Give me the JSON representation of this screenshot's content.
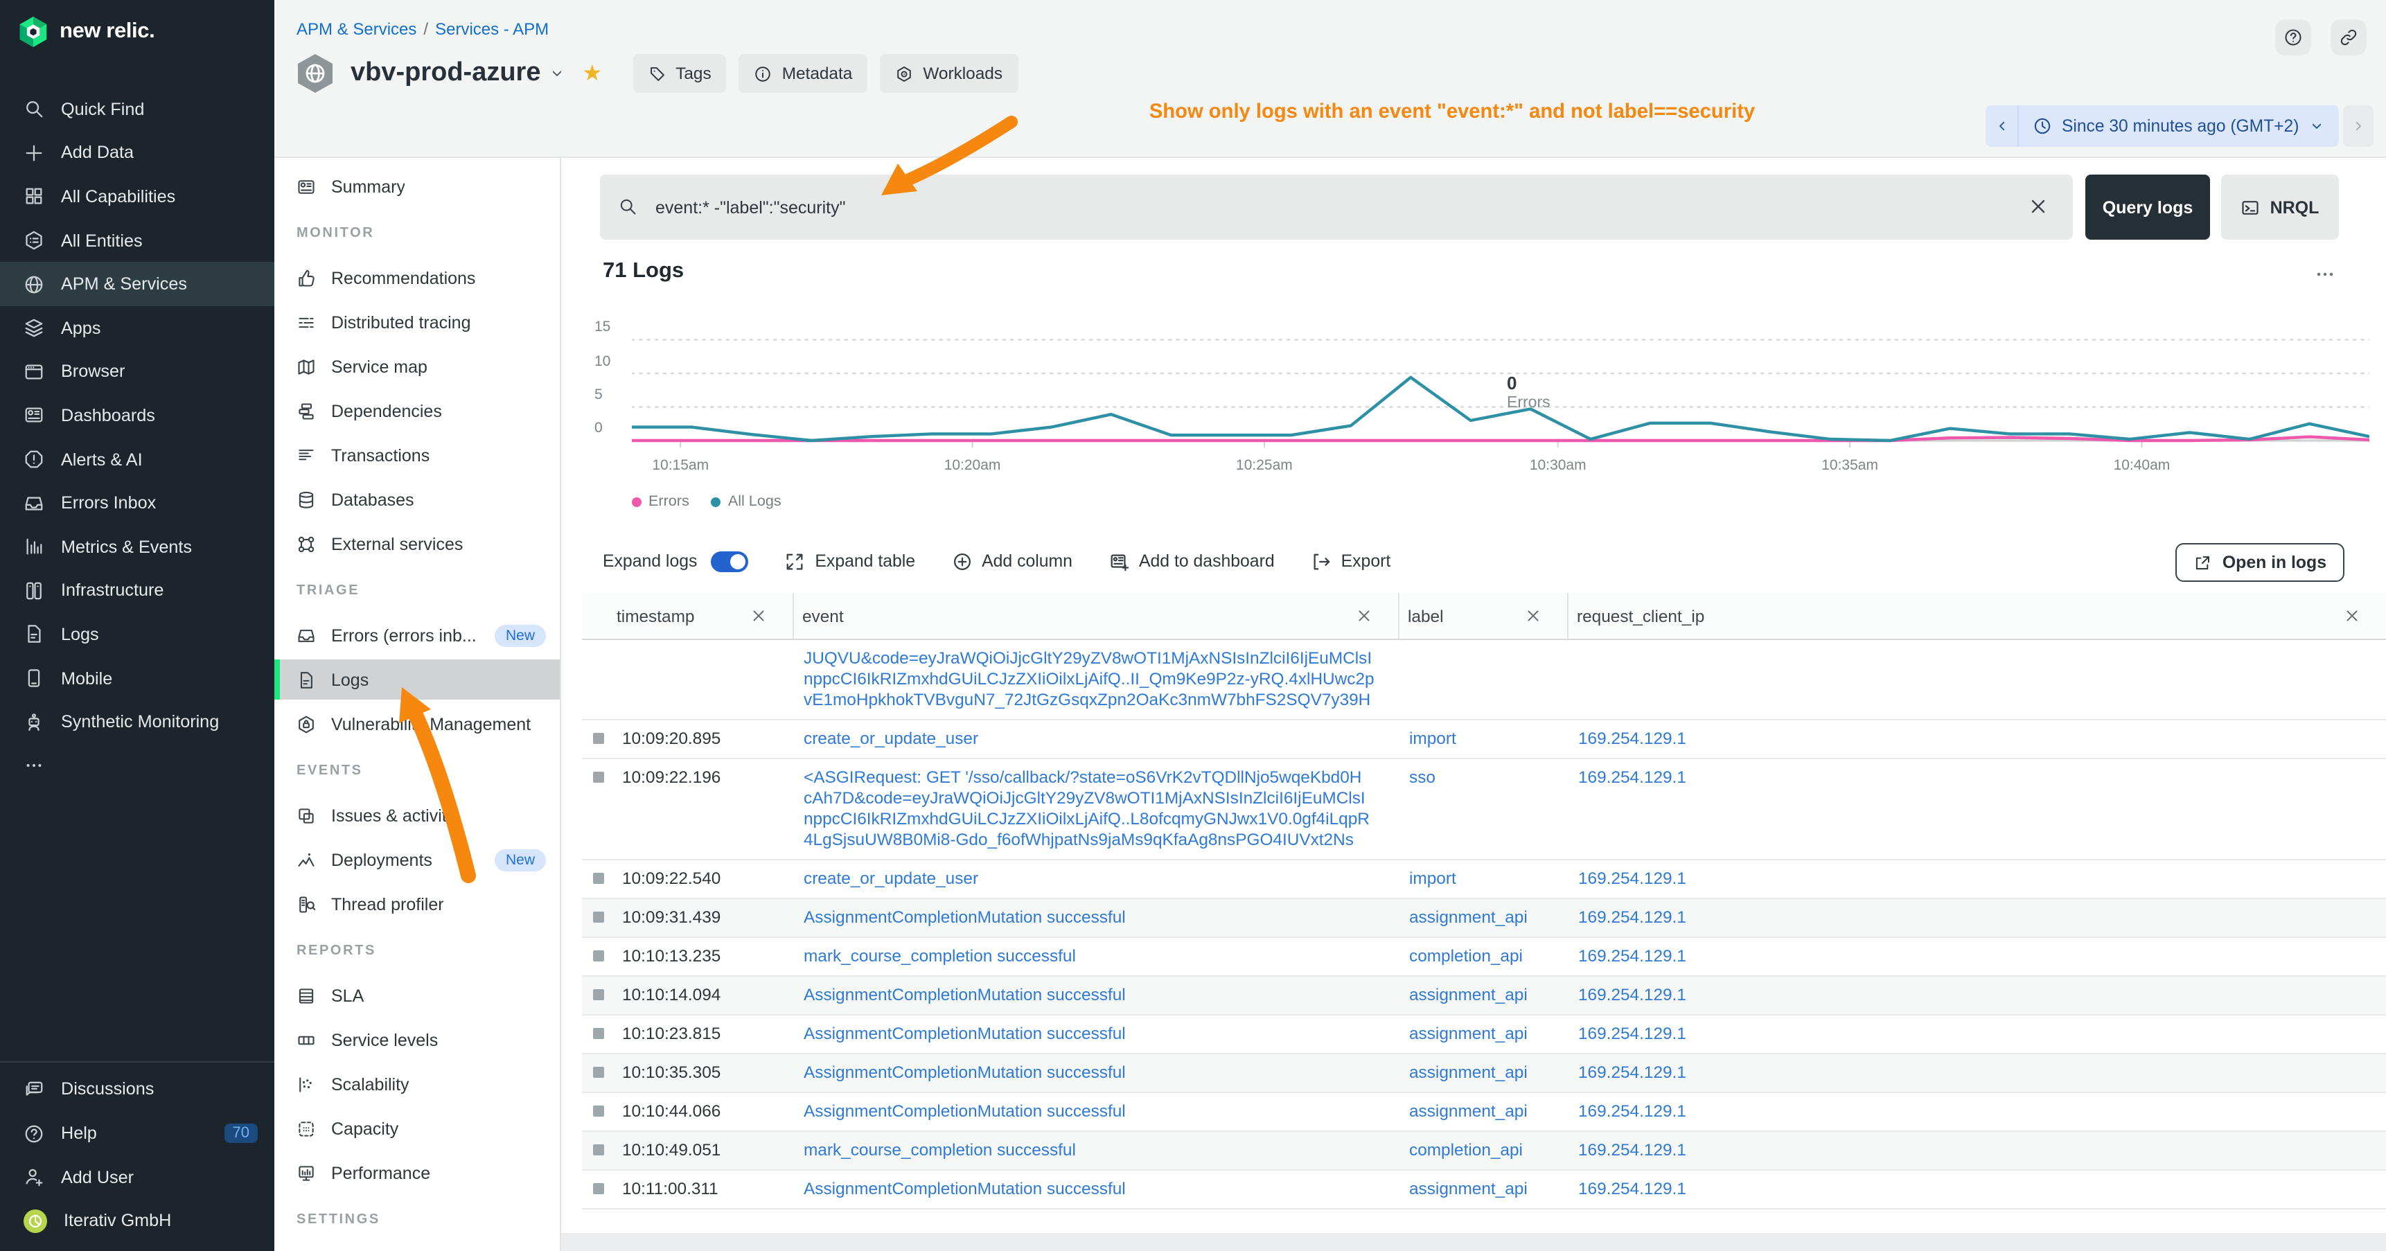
{
  "colors": {
    "accent_orange": "#F6870F",
    "brand_green": "#1CE783",
    "link_blue": "#2E7AD6",
    "breadcrumb_blue": "#1270CC",
    "errors_pink": "#EF58AC",
    "all_logs_teal": "#2D90A5",
    "sidebar_dark": "#1D252C",
    "time_picker_bg": "#DCE7FB",
    "time_picker_text": "#1F4F96"
  },
  "app": {
    "product_name": "new relic."
  },
  "global_nav": {
    "items": [
      {
        "icon": "search",
        "label": "Quick Find"
      },
      {
        "icon": "plus",
        "label": "Add Data"
      },
      {
        "icon": "grid",
        "label": "All Capabilities"
      },
      {
        "icon": "hexlist",
        "label": "All Entities"
      },
      {
        "icon": "globe",
        "label": "APM & Services",
        "active": true
      },
      {
        "icon": "layers",
        "label": "Apps"
      },
      {
        "icon": "browser",
        "label": "Browser"
      },
      {
        "icon": "dashboard",
        "label": "Dashboards"
      },
      {
        "icon": "alert",
        "label": "Alerts & AI"
      },
      {
        "icon": "inbox",
        "label": "Errors Inbox"
      },
      {
        "icon": "chartbars",
        "label": "Metrics & Events"
      },
      {
        "icon": "servers",
        "label": "Infrastructure"
      },
      {
        "icon": "doc",
        "label": "Logs"
      },
      {
        "icon": "phone",
        "label": "Mobile"
      },
      {
        "icon": "robot",
        "label": "Synthetic Monitoring"
      },
      {
        "icon": "dots",
        "label": ""
      }
    ],
    "footer_items": [
      {
        "icon": "chat",
        "label": "Discussions"
      },
      {
        "icon": "question",
        "label": "Help",
        "badge": "70"
      },
      {
        "icon": "userplus",
        "label": "Add User"
      },
      {
        "icon": "pie",
        "label": "Iterativ GmbH",
        "avatar": true
      }
    ]
  },
  "header": {
    "breadcrumb": [
      "APM & Services",
      "Services - APM"
    ],
    "entity_name": "vbv-prod-azure",
    "entity_actions": [
      {
        "icon": "tag",
        "label": "Tags"
      },
      {
        "icon": "info",
        "label": "Metadata"
      },
      {
        "icon": "workloads",
        "label": "Workloads"
      }
    ],
    "annotation": "Show only logs with an event \"event:*\" and not label==security",
    "time_picker": "Since 30 minutes ago (GMT+2)"
  },
  "side_nav": {
    "sections": [
      {
        "title": "",
        "items": [
          {
            "icon": "dashboard",
            "label": "Summary"
          }
        ]
      },
      {
        "title": "MONITOR",
        "items": [
          {
            "icon": "thumb",
            "label": "Recommendations"
          },
          {
            "icon": "tracing",
            "label": "Distributed tracing"
          },
          {
            "icon": "map",
            "label": "Service map"
          },
          {
            "icon": "deps",
            "label": "Dependencies"
          },
          {
            "icon": "translist",
            "label": "Transactions"
          },
          {
            "icon": "db",
            "label": "Databases"
          },
          {
            "icon": "nodes",
            "label": "External services"
          }
        ]
      },
      {
        "title": "TRIAGE",
        "items": [
          {
            "icon": "inbox",
            "label": "Errors (errors inb...",
            "badge": "New"
          },
          {
            "icon": "doc",
            "label": "Logs",
            "active": true
          },
          {
            "icon": "shield",
            "label": "Vulnerability Management"
          }
        ]
      },
      {
        "title": "EVENTS",
        "items": [
          {
            "icon": "issues",
            "label": "Issues & activity"
          },
          {
            "icon": "pulse",
            "label": "Deployments",
            "badge": "New"
          },
          {
            "icon": "profiler",
            "label": "Thread profiler"
          }
        ]
      },
      {
        "title": "REPORTS",
        "items": [
          {
            "icon": "sla",
            "label": "SLA"
          },
          {
            "icon": "collevels",
            "label": "Service levels"
          },
          {
            "icon": "scatter",
            "label": "Scalability"
          },
          {
            "icon": "capacity",
            "label": "Capacity"
          },
          {
            "icon": "monitor",
            "label": "Performance"
          }
        ]
      },
      {
        "title": "SETTINGS",
        "items": []
      }
    ]
  },
  "query_bar": {
    "value": "event:* -\"label\":\"security\"",
    "run_label": "Query logs",
    "nrql_label": "NRQL"
  },
  "logs_panel": {
    "title": "71 Logs",
    "toolbar": {
      "expand_label": "Expand logs",
      "toggle_on": true,
      "actions": [
        {
          "icon": "expand",
          "label": "Expand table"
        },
        {
          "icon": "pluscircle",
          "label": "Add column"
        },
        {
          "icon": "adddash",
          "label": "Add to dashboard"
        },
        {
          "icon": "export",
          "label": "Export"
        }
      ],
      "open_label": "Open in logs"
    },
    "legend": [
      {
        "label": "Errors",
        "color": "#EF58AC"
      },
      {
        "label": "All Logs",
        "color": "#2D90A5"
      }
    ],
    "tooltip": {
      "value": "0",
      "series": "Errors"
    }
  },
  "chart_data": {
    "type": "line",
    "title": "71 Logs",
    "xlabel": "",
    "ylabel": "",
    "x_ticks": [
      {
        "label": "10:15am",
        "f": 0.028
      },
      {
        "label": "10:20am",
        "f": 0.196
      },
      {
        "label": "10:25am",
        "f": 0.364
      },
      {
        "label": "10:30am",
        "f": 0.533
      },
      {
        "label": "10:35am",
        "f": 0.701
      },
      {
        "label": "10:40am",
        "f": 0.869
      }
    ],
    "x_range": [
      "10:14am",
      "10:44am"
    ],
    "yticks": [
      0,
      5,
      10,
      15
    ],
    "ylim": [
      0,
      16
    ],
    "grid": "dotted-horizontal",
    "legend_position": "bottom-left",
    "series": [
      {
        "name": "All Logs",
        "color": "#2D90A5",
        "values": [
          2,
          2,
          0.9,
          0,
          0.6,
          1,
          1,
          2,
          3.9,
          0.8,
          0.8,
          0.8,
          2.2,
          9.4,
          3,
          4.7,
          0.2,
          2.6,
          2.6,
          1.3,
          0.2,
          0,
          1.8,
          1,
          1,
          0.2,
          1.2,
          0.2,
          2.5,
          0.6
        ]
      },
      {
        "name": "Errors",
        "color": "#EF58AC",
        "values": [
          0,
          0,
          0,
          0,
          0,
          0,
          0,
          0,
          0,
          0,
          0,
          0,
          0,
          0,
          0,
          0,
          0,
          0,
          0,
          0,
          0,
          0,
          0.4,
          0.45,
          0.3,
          0,
          0,
          0.1,
          0.55,
          0.1
        ]
      }
    ],
    "annotation": {
      "value": "0",
      "series": "Errors",
      "f": 0.502
    }
  },
  "table": {
    "columns": [
      {
        "label": "timestamp"
      },
      {
        "label": "event"
      },
      {
        "label": "label"
      },
      {
        "label": "request_client_ip"
      }
    ],
    "rows": [
      {
        "timestamp": "",
        "gutter": false,
        "event_lines": [
          "JUQVU&code=eyJraWQiOiJjcGltY29yZV8wOTI1MjAxNSIsInZlciI6IjEuMClsI",
          "nppcCI6IkRIZmxhdGUiLCJzZXIiOilxLjAifQ..II_Qm9Ke9P2z-yRQ.4xlHUwc2p",
          "vE1moHpkhokTVBvguN7_72JtGzGsqxZpn2OaKc3nmW7bhFS2SQV7y39H"
        ],
        "label": "",
        "ip": ""
      },
      {
        "timestamp": "10:09:20.895",
        "gutter": true,
        "event_lines": [
          "create_or_update_user"
        ],
        "label": "import",
        "ip": "169.254.129.1"
      },
      {
        "timestamp": "10:09:22.196",
        "gutter": true,
        "event_lines": [
          "<ASGIRequest: GET '/sso/callback/?state=oS6VrK2vTQDllNjo5wqeKbd0H",
          "cAh7D&code=eyJraWQiOiJjcGltY29yZV8wOTI1MjAxNSIsInZlciI6IjEuMClsI",
          "nppcCI6IkRIZmxhdGUiLCJzZXIiOilxLjAifQ..L8ofcqmyGNJwx1V0.0gf4iLqpR",
          "4LgSjsuUW8B0Mi8-Gdo_f6ofWhjpatNs9jaMs9qKfaAg8nsPGO4IUVxt2Ns"
        ],
        "label": "sso",
        "ip": "169.254.129.1"
      },
      {
        "timestamp": "10:09:22.540",
        "gutter": true,
        "event_lines": [
          "create_or_update_user"
        ],
        "label": "import",
        "ip": "169.254.129.1"
      },
      {
        "timestamp": "10:09:31.439",
        "gutter": true,
        "shaded": true,
        "event_lines": [
          "AssignmentCompletionMutation successful"
        ],
        "label": "assignment_api",
        "ip": "169.254.129.1"
      },
      {
        "timestamp": "10:10:13.235",
        "gutter": true,
        "event_lines": [
          "mark_course_completion successful"
        ],
        "label": "completion_api",
        "ip": "169.254.129.1"
      },
      {
        "timestamp": "10:10:14.094",
        "gutter": true,
        "shaded": true,
        "event_lines": [
          "AssignmentCompletionMutation successful"
        ],
        "label": "assignment_api",
        "ip": "169.254.129.1"
      },
      {
        "timestamp": "10:10:23.815",
        "gutter": true,
        "event_lines": [
          "AssignmentCompletionMutation successful"
        ],
        "label": "assignment_api",
        "ip": "169.254.129.1"
      },
      {
        "timestamp": "10:10:35.305",
        "gutter": true,
        "shaded": true,
        "event_lines": [
          "AssignmentCompletionMutation successful"
        ],
        "label": "assignment_api",
        "ip": "169.254.129.1"
      },
      {
        "timestamp": "10:10:44.066",
        "gutter": true,
        "event_lines": [
          "AssignmentCompletionMutation successful"
        ],
        "label": "assignment_api",
        "ip": "169.254.129.1"
      },
      {
        "timestamp": "10:10:49.051",
        "gutter": true,
        "shaded": true,
        "event_lines": [
          "mark_course_completion successful"
        ],
        "label": "completion_api",
        "ip": "169.254.129.1"
      },
      {
        "timestamp": "10:11:00.311",
        "gutter": true,
        "event_lines": [
          "AssignmentCompletionMutation successful"
        ],
        "label": "assignment_api",
        "ip": "169.254.129.1"
      }
    ]
  }
}
